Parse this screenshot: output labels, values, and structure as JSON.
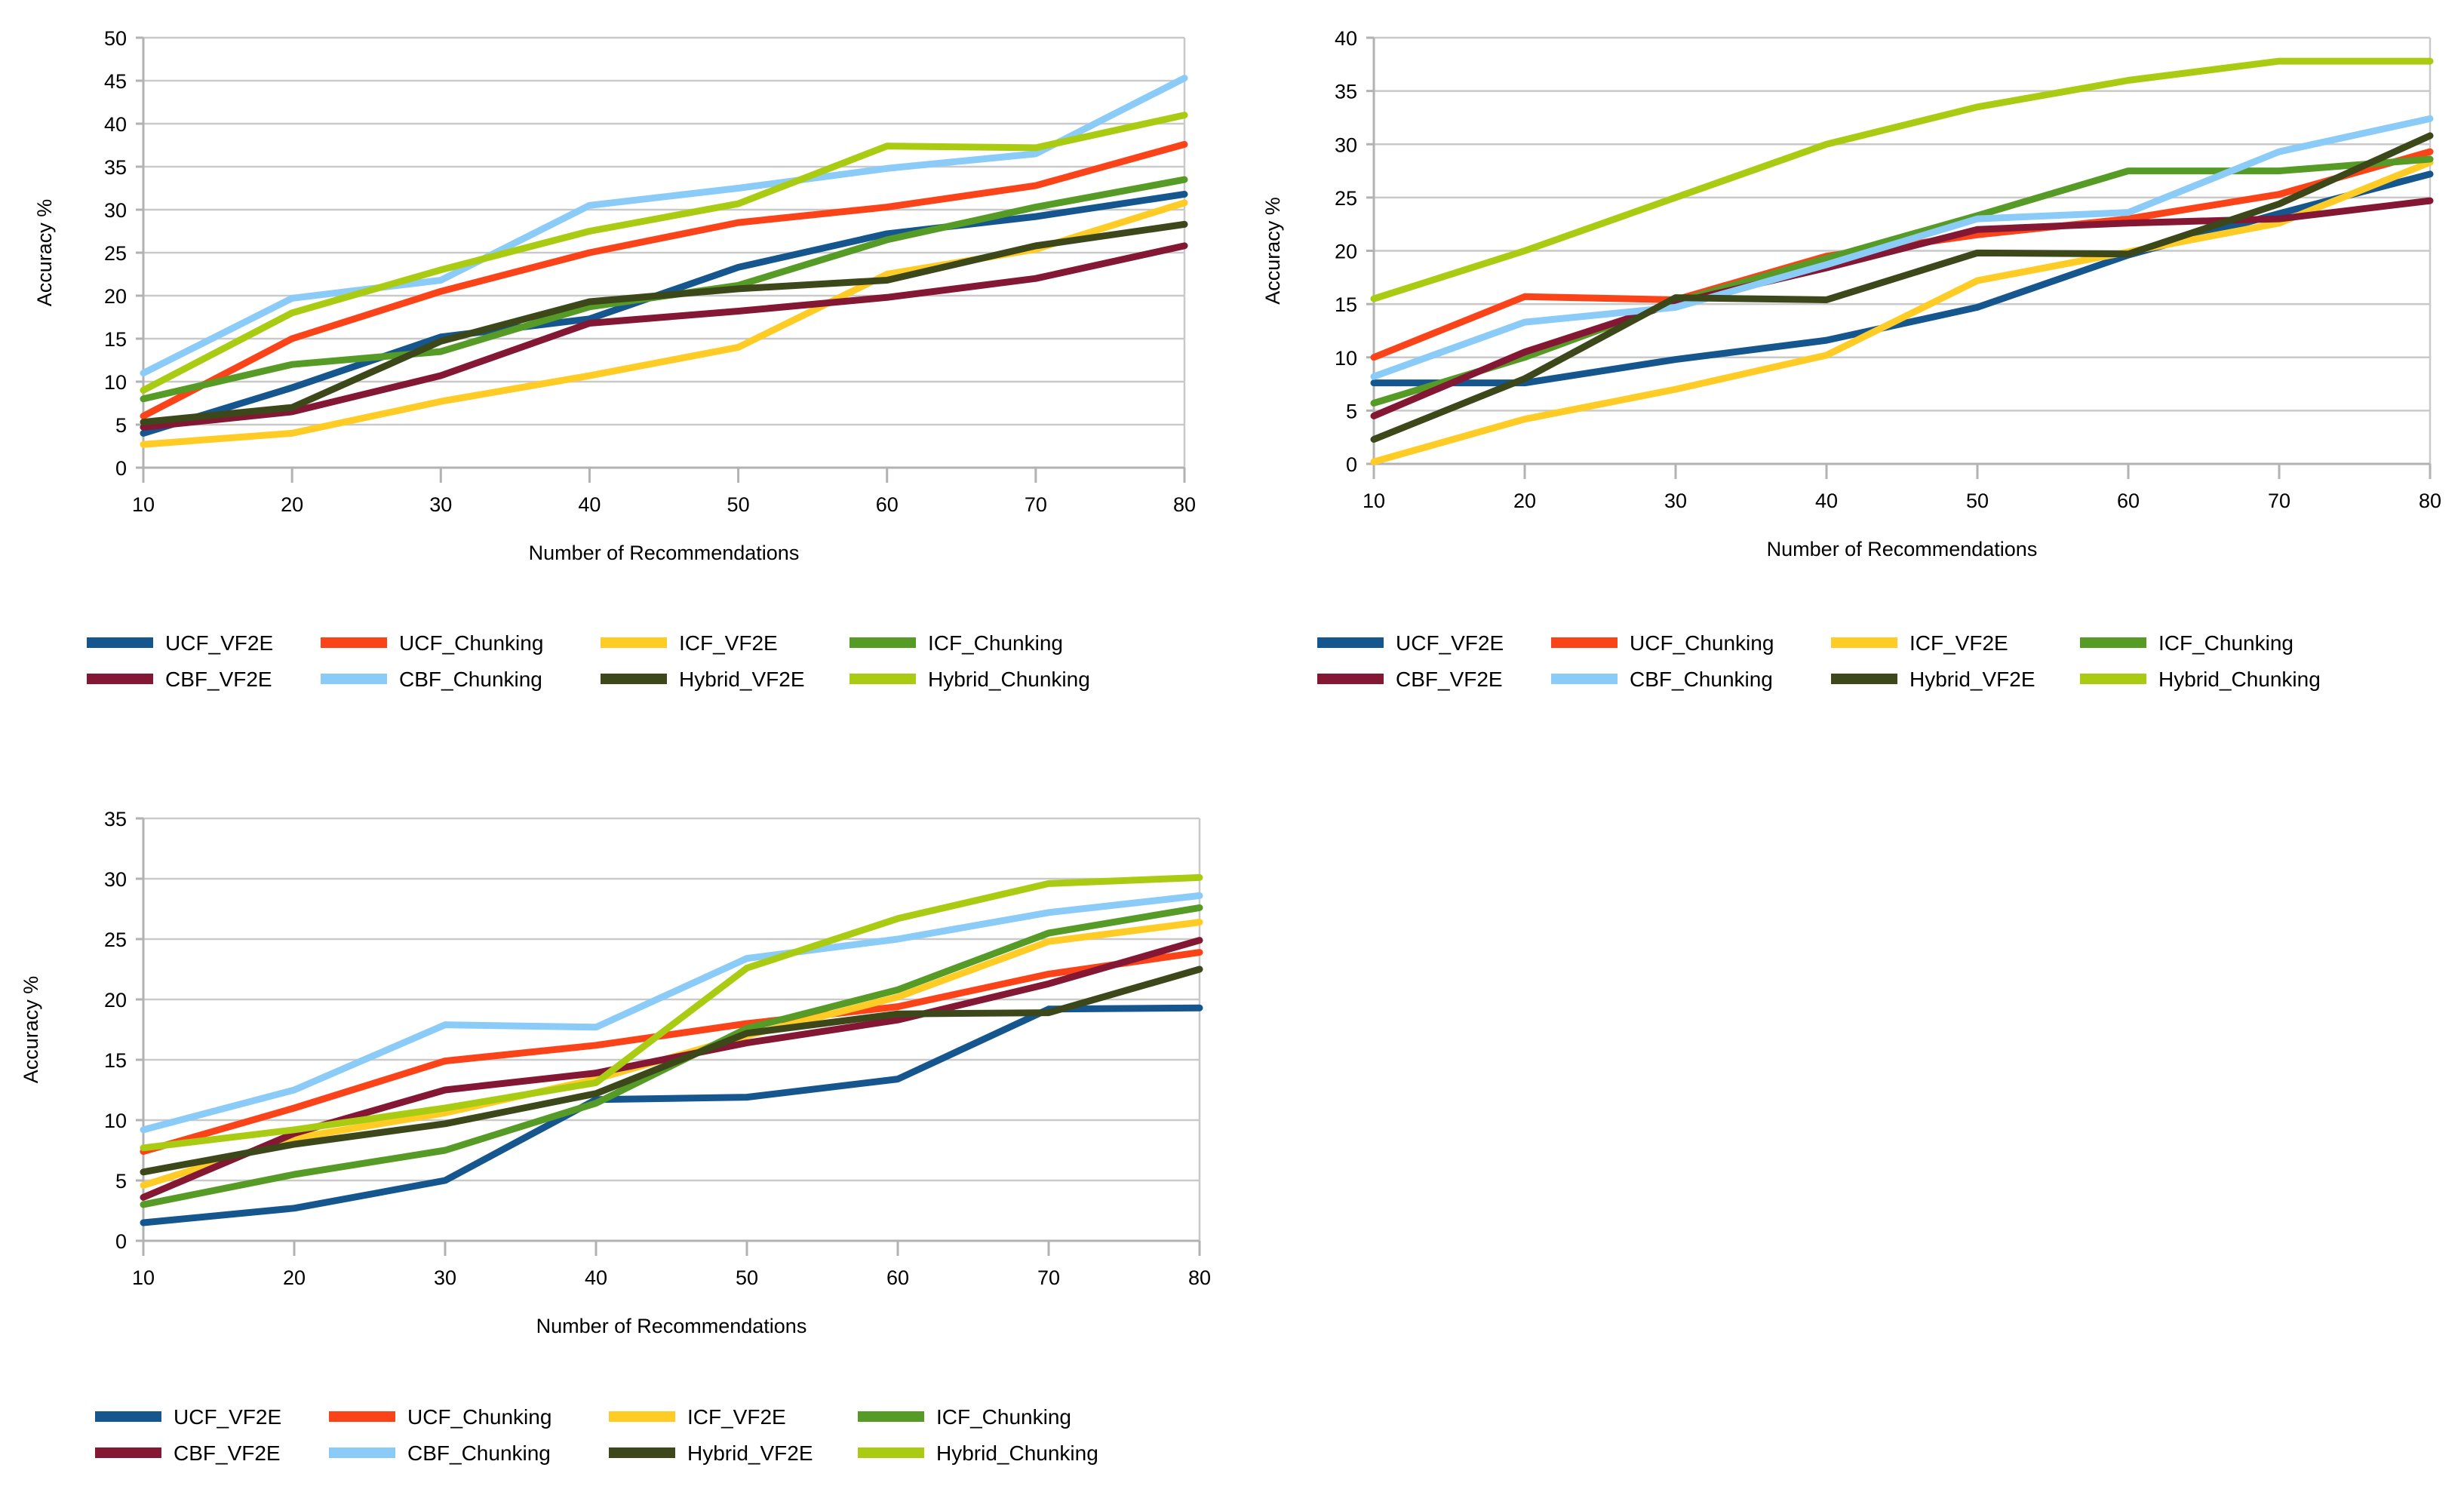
{
  "page": {
    "background": "#FFFFFF"
  },
  "chart_data": [
    {
      "type": "line",
      "title": "",
      "xlabel": "Number of Recommendations",
      "ylabel": "Accuracy %",
      "x": [
        10,
        20,
        30,
        40,
        50,
        60,
        70,
        80
      ],
      "ylim": [
        0,
        50
      ],
      "ytick_step": 5,
      "yticks": [
        0,
        5,
        10,
        15,
        20,
        25,
        30,
        35,
        40,
        45,
        50
      ],
      "grid": "horizontal",
      "legend_position": "bottom-two-rows",
      "series": [
        {
          "name": "UCF_VF2E",
          "color": "#15568F",
          "values": [
            4.0,
            9.3,
            15.2,
            17.3,
            23.3,
            27.2,
            29.2,
            31.8
          ]
        },
        {
          "name": "UCF_Chunking",
          "color": "#FB431A",
          "values": [
            6.0,
            15.0,
            20.5,
            25.0,
            28.5,
            30.3,
            32.8,
            37.6
          ]
        },
        {
          "name": "ICF_VF2E",
          "color": "#FECC25",
          "values": [
            2.7,
            4.0,
            7.7,
            10.7,
            14.0,
            22.5,
            25.4,
            30.8
          ]
        },
        {
          "name": "ICF_Chunking",
          "color": "#569B26",
          "values": [
            8.0,
            12.0,
            13.5,
            18.7,
            21.2,
            26.5,
            30.3,
            33.5
          ]
        },
        {
          "name": "CBF_VF2E",
          "color": "#841733",
          "values": [
            4.7,
            6.5,
            10.7,
            16.8,
            18.2,
            19.8,
            22.0,
            25.8
          ]
        },
        {
          "name": "CBF_Chunking",
          "color": "#8BCBF7",
          "values": [
            11.0,
            19.7,
            21.8,
            30.5,
            32.5,
            34.8,
            36.5,
            45.3
          ]
        },
        {
          "name": "Hybrid_VF2E",
          "color": "#3D481A",
          "values": [
            5.3,
            7.0,
            14.7,
            19.3,
            20.8,
            21.8,
            25.8,
            28.3
          ]
        },
        {
          "name": "Hybrid_Chunking",
          "color": "#A9CC12",
          "values": [
            9.0,
            18.0,
            23.0,
            27.5,
            30.7,
            37.4,
            37.2,
            41.0
          ]
        }
      ]
    },
    {
      "type": "line",
      "title": "",
      "xlabel": "Number of Recommendations",
      "ylabel": "Accuracy %",
      "x": [
        10,
        20,
        30,
        40,
        50,
        60,
        70,
        80
      ],
      "ylim": [
        0,
        40
      ],
      "ytick_step": 5,
      "yticks": [
        0,
        5,
        10,
        15,
        20,
        25,
        30,
        35,
        40
      ],
      "grid": "horizontal",
      "legend_position": "bottom-two-rows",
      "series": [
        {
          "name": "UCF_VF2E",
          "color": "#15568F",
          "values": [
            7.6,
            7.6,
            9.8,
            11.6,
            14.7,
            19.6,
            23.5,
            27.2
          ]
        },
        {
          "name": "UCF_Chunking",
          "color": "#FB431A",
          "values": [
            10.0,
            15.7,
            15.4,
            19.5,
            21.5,
            23.0,
            25.3,
            29.3
          ]
        },
        {
          "name": "ICF_VF2E",
          "color": "#FECC25",
          "values": [
            0.2,
            4.2,
            7.0,
            10.2,
            17.2,
            19.9,
            22.6,
            28.3
          ]
        },
        {
          "name": "ICF_Chunking",
          "color": "#569B26",
          "values": [
            5.7,
            10.0,
            15.2,
            19.3,
            23.3,
            27.5,
            27.5,
            28.6
          ]
        },
        {
          "name": "CBF_VF2E",
          "color": "#841733",
          "values": [
            4.5,
            10.5,
            15.1,
            18.4,
            22.0,
            22.6,
            23.0,
            24.7
          ]
        },
        {
          "name": "CBF_Chunking",
          "color": "#8BCBF7",
          "values": [
            8.2,
            13.3,
            14.7,
            18.7,
            23.0,
            23.6,
            29.3,
            32.4
          ]
        },
        {
          "name": "Hybrid_VF2E",
          "color": "#3D481A",
          "values": [
            2.3,
            8.0,
            15.6,
            15.4,
            19.8,
            19.7,
            24.4,
            30.8
          ]
        },
        {
          "name": "Hybrid_Chunking",
          "color": "#A9CC12",
          "values": [
            15.5,
            20.0,
            25.0,
            30.0,
            33.5,
            36.0,
            37.8,
            37.8
          ]
        }
      ]
    },
    {
      "type": "line",
      "title": "",
      "xlabel": "Number of Recommendations",
      "ylabel": "Accuracy %",
      "x": [
        10,
        20,
        30,
        40,
        50,
        60,
        70,
        80
      ],
      "ylim": [
        0,
        35
      ],
      "ytick_step": 5,
      "yticks": [
        0,
        5,
        10,
        15,
        20,
        25,
        30,
        35
      ],
      "grid": "horizontal",
      "legend_position": "bottom-two-rows",
      "series": [
        {
          "name": "UCF_VF2E",
          "color": "#15568F",
          "values": [
            1.5,
            2.7,
            5.0,
            11.7,
            11.9,
            13.4,
            19.2,
            19.3
          ]
        },
        {
          "name": "UCF_Chunking",
          "color": "#FB431A",
          "values": [
            7.4,
            11.0,
            14.9,
            16.2,
            18.0,
            19.4,
            22.1,
            23.9
          ]
        },
        {
          "name": "ICF_VF2E",
          "color": "#FECC25",
          "values": [
            4.6,
            8.5,
            10.6,
            13.4,
            17.0,
            20.2,
            24.8,
            26.4
          ]
        },
        {
          "name": "ICF_Chunking",
          "color": "#569B26",
          "values": [
            3.0,
            5.5,
            7.5,
            11.4,
            17.6,
            20.8,
            25.5,
            27.6
          ]
        },
        {
          "name": "CBF_VF2E",
          "color": "#841733",
          "values": [
            3.6,
            8.9,
            12.5,
            13.9,
            16.4,
            18.3,
            21.3,
            24.9
          ]
        },
        {
          "name": "CBF_Chunking",
          "color": "#8BCBF7",
          "values": [
            9.2,
            12.5,
            17.9,
            17.7,
            23.4,
            25.0,
            27.2,
            28.6
          ]
        },
        {
          "name": "Hybrid_VF2E",
          "color": "#3D481A",
          "values": [
            5.7,
            8.0,
            9.7,
            12.2,
            17.2,
            18.8,
            18.9,
            22.5
          ]
        },
        {
          "name": "Hybrid_Chunking",
          "color": "#A9CC12",
          "values": [
            7.7,
            9.2,
            11.0,
            13.1,
            22.6,
            26.7,
            29.6,
            30.1
          ]
        }
      ]
    }
  ],
  "style_colors": {
    "gridline": "#C9C9C9",
    "axis": "#B2B2B2",
    "text": "#000000"
  }
}
